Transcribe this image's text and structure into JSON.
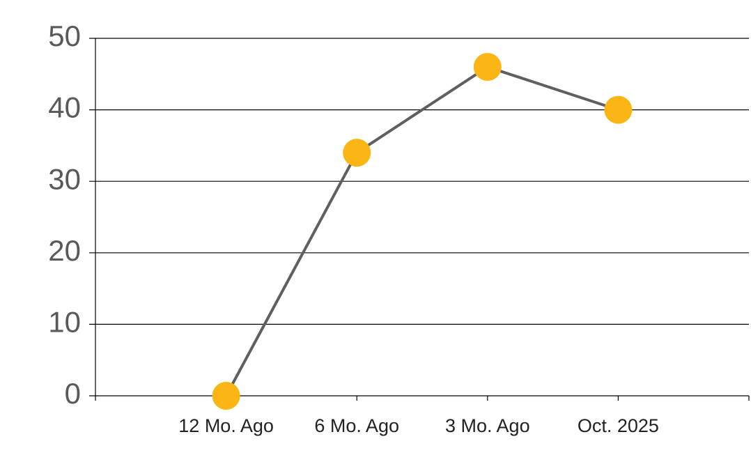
{
  "chart_data": {
    "type": "line",
    "categories": [
      "12 Mo. Ago",
      "6 Mo. Ago",
      "3 Mo. Ago",
      "Oct. 2025"
    ],
    "series": [
      {
        "values": [
          0,
          34,
          46,
          40
        ],
        "color": "#fbb515",
        "line_color": "#5f5f5f"
      }
    ],
    "ylim": [
      0,
      50
    ],
    "yticks": [
      0,
      10,
      20,
      30,
      40,
      50
    ],
    "grid": true
  }
}
